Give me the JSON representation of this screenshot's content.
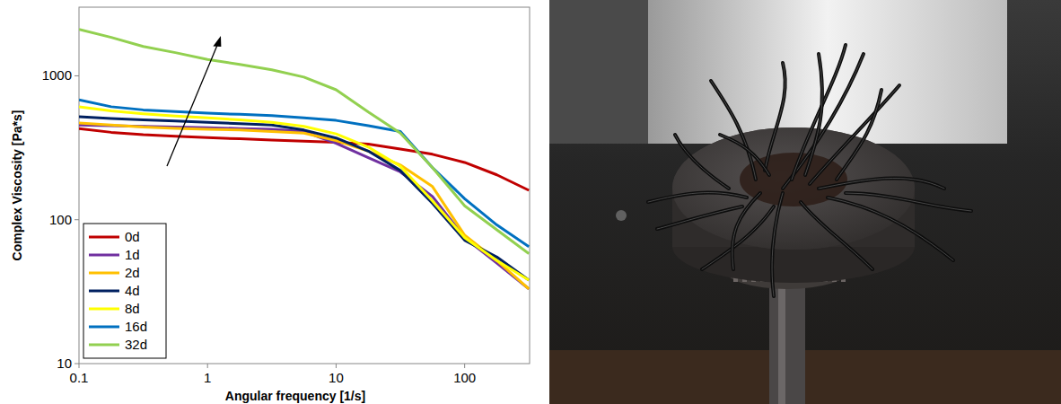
{
  "chart_data": {
    "type": "line",
    "x_label": "Angular frequency [1/s]",
    "y_label": "Complex Viscosity [Pa*s]",
    "x": [
      0.1,
      0.178,
      0.316,
      0.562,
      1,
      1.78,
      3.16,
      5.62,
      10,
      17.8,
      31.6,
      56.2,
      100,
      178,
      316
    ],
    "series": [
      {
        "name": "0d",
        "color": "#c00000",
        "values": [
          430,
          405,
          390,
          380,
          372,
          365,
          358,
          352,
          345,
          335,
          310,
          285,
          250,
          205,
          160
        ]
      },
      {
        "name": "1d",
        "color": "#7030a0",
        "values": [
          455,
          450,
          445,
          440,
          436,
          430,
          425,
          410,
          340,
          270,
          215,
          145,
          75,
          50,
          33
        ]
      },
      {
        "name": "2d",
        "color": "#ffc000",
        "values": [
          470,
          455,
          440,
          432,
          425,
          420,
          410,
          400,
          355,
          300,
          240,
          170,
          78,
          52,
          33
        ]
      },
      {
        "name": "4d",
        "color": "#002060",
        "values": [
          520,
          505,
          495,
          485,
          475,
          465,
          455,
          420,
          370,
          300,
          220,
          130,
          72,
          55,
          38
        ]
      },
      {
        "name": "8d",
        "color": "#ffff00",
        "values": [
          610,
          570,
          545,
          525,
          510,
          495,
          475,
          445,
          395,
          320,
          235,
          135,
          75,
          52,
          38
        ]
      },
      {
        "name": "16d",
        "color": "#0070c0",
        "values": [
          680,
          610,
          580,
          565,
          550,
          540,
          530,
          510,
          490,
          450,
          410,
          230,
          140,
          92,
          65
        ]
      },
      {
        "name": "32d",
        "color": "#92d050",
        "values": [
          2100,
          1850,
          1600,
          1450,
          1300,
          1200,
          1100,
          980,
          800,
          560,
          400,
          230,
          125,
          85,
          58
        ]
      }
    ],
    "xlim": [
      0.1,
      320
    ],
    "ylim": [
      10,
      3000
    ],
    "xticks": [
      0.1,
      1,
      10,
      100
    ],
    "yticks": [
      10,
      100,
      1000
    ],
    "log": true,
    "grid": false,
    "legend": "lower left"
  }
}
